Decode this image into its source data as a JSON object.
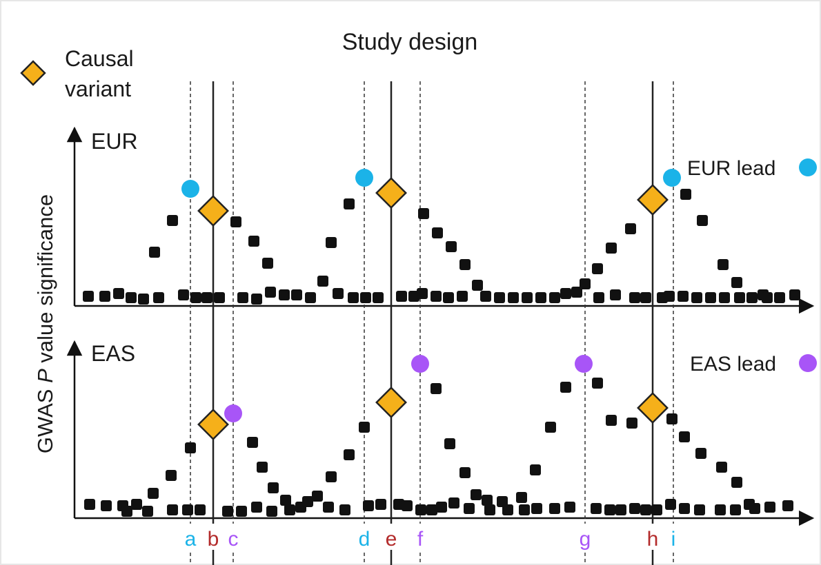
{
  "title": "Study design",
  "legend": {
    "causal_label_line1": "Causal",
    "causal_label_line2": "variant"
  },
  "y_axis_label_parts": [
    "GWAS ",
    "P",
    " value significance"
  ],
  "panels": [
    {
      "id": "eur",
      "label": "EUR",
      "lead_label": "EUR lead"
    },
    {
      "id": "eas",
      "label": "EAS",
      "lead_label": "EAS lead"
    }
  ],
  "colors": {
    "eur": "#1bb3e8",
    "eas": "#a855f7",
    "causal": "#f5b01a",
    "causal_text": "#b32b2b",
    "points": "#111111",
    "axis": "#111111"
  },
  "position_letters": [
    {
      "letter": "a",
      "role": "eur"
    },
    {
      "letter": "b",
      "role": "causal"
    },
    {
      "letter": "c",
      "role": "eas"
    },
    {
      "letter": "d",
      "role": "eur"
    },
    {
      "letter": "e",
      "role": "causal"
    },
    {
      "letter": "f",
      "role": "eas"
    },
    {
      "letter": "g",
      "role": "eas"
    },
    {
      "letter": "h",
      "role": "causal"
    },
    {
      "letter": "i",
      "role": "eur"
    }
  ]
}
